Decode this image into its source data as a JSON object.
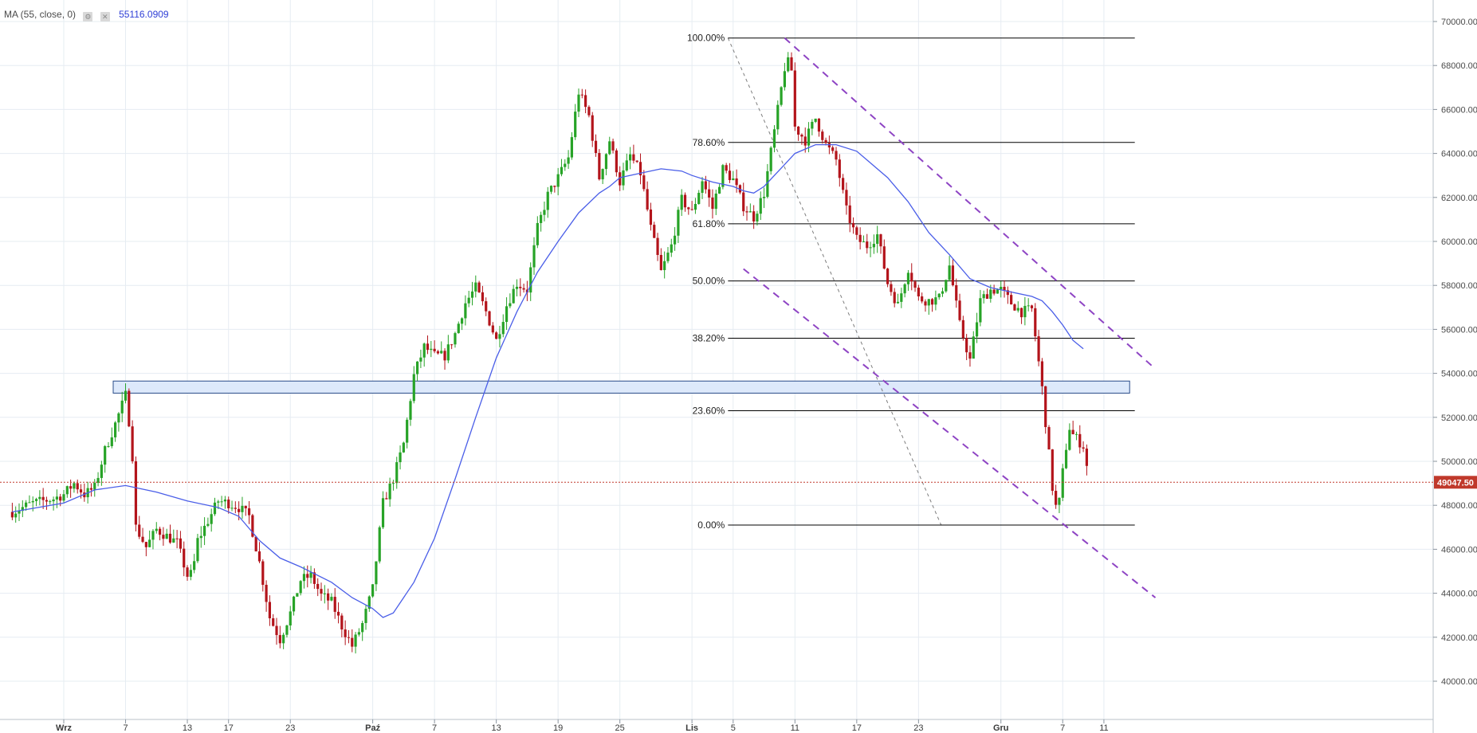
{
  "legend": {
    "indicator": "MA (55, close, 0)",
    "settings_icon": "gear-icon",
    "close_icon": "close-icon",
    "value": "55116.0909"
  },
  "colors": {
    "up": "#27a327",
    "down": "#b3141b",
    "ma": "#4a5ee8",
    "fib": "#000000",
    "channel": "#8e44c4",
    "zone_fill": "#dde9fb",
    "zone_stroke": "#2a4c8a",
    "price_line": "#c0392b",
    "grid": "#e6ecf2"
  },
  "chart_data": {
    "type": "candlestick",
    "ylim": [
      39500,
      70500
    ],
    "y_ticks": [
      "40000.00",
      "42000.00",
      "44000.00",
      "46000.00",
      "48000.00",
      "50000.00",
      "52000.00",
      "54000.00",
      "56000.00",
      "58000.00",
      "60000.00",
      "62000.00",
      "64000.00",
      "66000.00",
      "68000.00",
      "70000.00"
    ],
    "x_labels": [
      {
        "label": "Wrz",
        "day": 0,
        "bold": true
      },
      {
        "label": "7",
        "day": 6
      },
      {
        "label": "13",
        "day": 12
      },
      {
        "label": "17",
        "day": 16
      },
      {
        "label": "23",
        "day": 22
      },
      {
        "label": "Paź",
        "day": 30,
        "bold": true
      },
      {
        "label": "7",
        "day": 36
      },
      {
        "label": "13",
        "day": 42
      },
      {
        "label": "19",
        "day": 48
      },
      {
        "label": "25",
        "day": 54
      },
      {
        "label": "Lis",
        "day": 61,
        "bold": true
      },
      {
        "label": "5",
        "day": 65
      },
      {
        "label": "11",
        "day": 71
      },
      {
        "label": "17",
        "day": 77
      },
      {
        "label": "23",
        "day": 83
      },
      {
        "label": "Gru",
        "day": 91,
        "bold": true
      },
      {
        "label": "7",
        "day": 97
      },
      {
        "label": "11",
        "day": 101
      }
    ],
    "price_path": [
      [
        -5,
        47700
      ],
      [
        -3,
        48100
      ],
      [
        -1,
        48300
      ],
      [
        0,
        48500
      ],
      [
        1,
        49000
      ],
      [
        2,
        48500
      ],
      [
        3,
        48800
      ],
      [
        4,
        50500
      ],
      [
        5,
        51700
      ],
      [
        6,
        53000
      ],
      [
        6.6,
        50900
      ],
      [
        7,
        47000
      ],
      [
        8,
        46100
      ],
      [
        9,
        46900
      ],
      [
        10,
        46600
      ],
      [
        11,
        46300
      ],
      [
        12,
        44800
      ],
      [
        12.5,
        44900
      ],
      [
        13,
        46400
      ],
      [
        14,
        47300
      ],
      [
        15,
        48200
      ],
      [
        16,
        48100
      ],
      [
        17,
        47900
      ],
      [
        18,
        47500
      ],
      [
        19,
        45400
      ],
      [
        20,
        42900
      ],
      [
        21,
        41900
      ],
      [
        22,
        43100
      ],
      [
        23,
        44600
      ],
      [
        24,
        44800
      ],
      [
        25,
        43900
      ],
      [
        26,
        43600
      ],
      [
        27,
        42500
      ],
      [
        28,
        41600
      ],
      [
        29,
        42600
      ],
      [
        30,
        44200
      ],
      [
        31,
        48100
      ],
      [
        32,
        49200
      ],
      [
        33,
        50800
      ],
      [
        34,
        53900
      ],
      [
        35,
        55200
      ],
      [
        36,
        54800
      ],
      [
        37,
        54800
      ],
      [
        38,
        55800
      ],
      [
        39,
        57200
      ],
      [
        40,
        57900
      ],
      [
        41,
        56800
      ],
      [
        42,
        55500
      ],
      [
        43,
        57100
      ],
      [
        44,
        58100
      ],
      [
        45,
        57800
      ],
      [
        46,
        60600
      ],
      [
        47,
        62100
      ],
      [
        48,
        62900
      ],
      [
        49,
        63800
      ],
      [
        50,
        66800
      ],
      [
        51,
        65700
      ],
      [
        52,
        62900
      ],
      [
        53,
        64600
      ],
      [
        54,
        62700
      ],
      [
        55,
        63900
      ],
      [
        56,
        63100
      ],
      [
        57,
        60600
      ],
      [
        58,
        58600
      ],
      [
        59,
        59800
      ],
      [
        60,
        61900
      ],
      [
        61,
        61300
      ],
      [
        62,
        62800
      ],
      [
        63,
        61500
      ],
      [
        64,
        63300
      ],
      [
        65,
        62800
      ],
      [
        66,
        61600
      ],
      [
        67,
        61100
      ],
      [
        68,
        62200
      ],
      [
        69,
        65000
      ],
      [
        70,
        67900
      ],
      [
        70.6,
        68300
      ],
      [
        71,
        65200
      ],
      [
        72,
        64600
      ],
      [
        73,
        65600
      ],
      [
        74,
        64400
      ],
      [
        75,
        63700
      ],
      [
        76,
        61400
      ],
      [
        77,
        60100
      ],
      [
        78,
        59800
      ],
      [
        79,
        60300
      ],
      [
        80,
        58100
      ],
      [
        81,
        57100
      ],
      [
        82,
        58800
      ],
      [
        83,
        57400
      ],
      [
        84,
        57300
      ],
      [
        85,
        57400
      ],
      [
        86,
        58900
      ],
      [
        87,
        56200
      ],
      [
        88,
        54600
      ],
      [
        89,
        57300
      ],
      [
        90,
        57800
      ],
      [
        91,
        57800
      ],
      [
        92,
        57200
      ],
      [
        93,
        56800
      ],
      [
        94,
        56900
      ],
      [
        95,
        53300
      ],
      [
        96,
        48800
      ],
      [
        96.5,
        47500
      ],
      [
        97,
        49500
      ],
      [
        97.6,
        51600
      ],
      [
        98,
        51200
      ],
      [
        99,
        50700
      ],
      [
        99.6,
        49047
      ]
    ],
    "ma_path": [
      [
        -5,
        47700
      ],
      [
        0,
        48100
      ],
      [
        3,
        48700
      ],
      [
        6,
        48900
      ],
      [
        9,
        48600
      ],
      [
        12,
        48200
      ],
      [
        15,
        47900
      ],
      [
        17,
        47500
      ],
      [
        19,
        46400
      ],
      [
        21,
        45600
      ],
      [
        23,
        45200
      ],
      [
        26,
        44500
      ],
      [
        28,
        43800
      ],
      [
        30,
        43300
      ],
      [
        31,
        42900
      ],
      [
        32,
        43100
      ],
      [
        34,
        44500
      ],
      [
        36,
        46500
      ],
      [
        38,
        49200
      ],
      [
        40,
        52000
      ],
      [
        42,
        54700
      ],
      [
        44,
        56800
      ],
      [
        46,
        58600
      ],
      [
        48,
        60000
      ],
      [
        50,
        61300
      ],
      [
        52,
        62200
      ],
      [
        53,
        62500
      ],
      [
        54,
        62900
      ],
      [
        56,
        63100
      ],
      [
        58,
        63300
      ],
      [
        60,
        63200
      ],
      [
        61,
        63000
      ],
      [
        63,
        62700
      ],
      [
        65,
        62500
      ],
      [
        66,
        62300
      ],
      [
        67,
        62200
      ],
      [
        68,
        62500
      ],
      [
        70,
        63500
      ],
      [
        71,
        64000
      ],
      [
        73,
        64400
      ],
      [
        75,
        64400
      ],
      [
        77,
        64100
      ],
      [
        78,
        63700
      ],
      [
        80,
        62900
      ],
      [
        82,
        61800
      ],
      [
        84,
        60400
      ],
      [
        86,
        59400
      ],
      [
        88,
        58300
      ],
      [
        90,
        57900
      ],
      [
        92,
        57700
      ],
      [
        94,
        57500
      ],
      [
        95,
        57300
      ],
      [
        96,
        56800
      ],
      [
        97,
        56200
      ],
      [
        98,
        55500
      ],
      [
        99,
        55116
      ]
    ],
    "fib_levels": [
      {
        "label": "100.00%",
        "value": 69250
      },
      {
        "label": "78.60%",
        "value": 64500
      },
      {
        "label": "61.80%",
        "value": 60800
      },
      {
        "label": "50.00%",
        "value": 58200
      },
      {
        "label": "38.20%",
        "value": 55600
      },
      {
        "label": "23.60%",
        "value": 52300
      },
      {
        "label": "0.00%",
        "value": 47100
      }
    ],
    "fib_day_range": [
      64.5,
      104
    ],
    "fib_trend": {
      "from": [
        64.5,
        69250
      ],
      "to": [
        85.2,
        47100
      ]
    },
    "support_zone": {
      "from_day": 4.8,
      "to_day": 103.5,
      "low": 53100,
      "high": 53650
    },
    "channel_upper": {
      "from": [
        70,
        69250
      ],
      "to": [
        106,
        54200
      ]
    },
    "channel_lower": {
      "from": [
        66,
        58750
      ],
      "to": [
        106,
        43800
      ]
    },
    "last_price": {
      "value": 49047,
      "label": "49047.50"
    }
  }
}
